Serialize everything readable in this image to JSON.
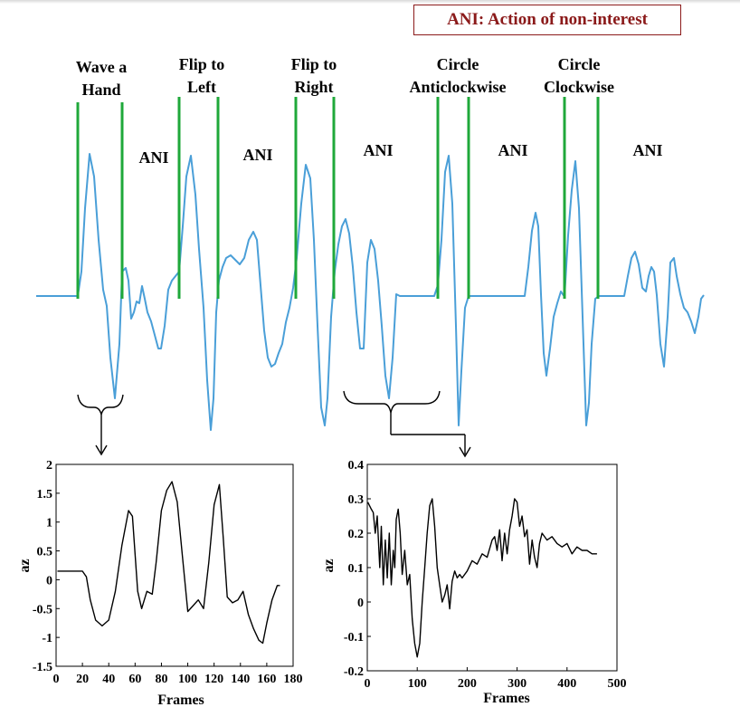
{
  "legend": "ANI: Action of non-interest",
  "gestures": [
    {
      "line1": "Wave a",
      "line2": "Hand"
    },
    {
      "line1": "Flip to",
      "line2": "Left"
    },
    {
      "line1": "Flip to",
      "line2": "Right"
    },
    {
      "line1": "Circle",
      "line2": "Anticlockwise"
    },
    {
      "line1": "Circle",
      "line2": "Clockwise"
    }
  ],
  "ani_labels": [
    "ANI",
    "ANI",
    "ANI",
    "ANI",
    "ANI"
  ],
  "colors": {
    "signal": "#4a9fd8",
    "marker": "#1fa83a",
    "legend": "#8b1a1a",
    "subplot": "#000000"
  },
  "chart_data": [
    {
      "type": "line",
      "title": "",
      "xlabel": "Frames",
      "ylabel": "az",
      "xlim": [
        0,
        180
      ],
      "ylim": [
        -1.5,
        2
      ],
      "xticks": [
        "0",
        "20",
        "40",
        "60",
        "80",
        "100",
        "120",
        "140",
        "160",
        "180"
      ],
      "yticks": [
        "-1.5",
        "-1",
        "-0.5",
        "0",
        "0.5",
        "1",
        "1.5",
        "2"
      ],
      "x": [
        1,
        5,
        10,
        15,
        20,
        23,
        26,
        30,
        35,
        40,
        45,
        50,
        55,
        58,
        62,
        65,
        69,
        73,
        76,
        80,
        84,
        88,
        92,
        96,
        100,
        104,
        108,
        112,
        116,
        120,
        124,
        127,
        130,
        134,
        138,
        142,
        146,
        150,
        154,
        157,
        160,
        164,
        168,
        170
      ],
      "y": [
        0.15,
        0.15,
        0.15,
        0.15,
        0.15,
        0.05,
        -0.35,
        -0.7,
        -0.8,
        -0.7,
        -0.2,
        0.6,
        1.2,
        1.1,
        -0.2,
        -0.5,
        -0.2,
        -0.25,
        0.3,
        1.2,
        1.55,
        1.7,
        1.35,
        0.4,
        -0.55,
        -0.45,
        -0.35,
        -0.5,
        0.3,
        1.3,
        1.65,
        0.7,
        -0.3,
        -0.4,
        -0.35,
        -0.2,
        -0.6,
        -0.85,
        -1.05,
        -1.1,
        -0.75,
        -0.35,
        -0.1,
        -0.1
      ]
    },
    {
      "type": "line",
      "title": "",
      "xlabel": "Frames",
      "ylabel": "az",
      "xlim": [
        0,
        500
      ],
      "ylim": [
        -0.2,
        0.4
      ],
      "xticks": [
        "0",
        "100",
        "200",
        "300",
        "400",
        "500"
      ],
      "yticks": [
        "-0.2",
        "-0.1",
        "0",
        "0.1",
        "0.2",
        "0.3",
        "0.4"
      ],
      "x": [
        1,
        8,
        12,
        16,
        20,
        25,
        28,
        32,
        36,
        40,
        44,
        48,
        52,
        55,
        58,
        62,
        66,
        70,
        75,
        80,
        85,
        90,
        95,
        100,
        105,
        110,
        115,
        120,
        125,
        130,
        135,
        140,
        145,
        150,
        155,
        160,
        165,
        170,
        175,
        180,
        185,
        190,
        200,
        210,
        220,
        230,
        240,
        250,
        255,
        260,
        265,
        270,
        275,
        280,
        285,
        290,
        295,
        300,
        305,
        310,
        315,
        320,
        325,
        330,
        335,
        340,
        345,
        350,
        360,
        370,
        380,
        390,
        400,
        410,
        420,
        430,
        440,
        450,
        460
      ],
      "y": [
        0.29,
        0.27,
        0.26,
        0.2,
        0.25,
        0.1,
        0.22,
        0.05,
        0.18,
        0.07,
        0.2,
        0.05,
        0.15,
        0.1,
        0.24,
        0.27,
        0.2,
        0.08,
        0.15,
        0.05,
        0.08,
        -0.05,
        -0.12,
        -0.16,
        -0.12,
        0.0,
        0.1,
        0.2,
        0.28,
        0.3,
        0.22,
        0.1,
        0.05,
        0.0,
        0.02,
        0.05,
        -0.02,
        0.06,
        0.09,
        0.07,
        0.08,
        0.07,
        0.09,
        0.12,
        0.11,
        0.14,
        0.13,
        0.18,
        0.19,
        0.15,
        0.21,
        0.12,
        0.2,
        0.14,
        0.21,
        0.25,
        0.3,
        0.29,
        0.22,
        0.25,
        0.19,
        0.21,
        0.11,
        0.18,
        0.13,
        0.1,
        0.17,
        0.2,
        0.18,
        0.19,
        0.17,
        0.16,
        0.17,
        0.14,
        0.16,
        0.15,
        0.15,
        0.14,
        0.14
      ]
    }
  ]
}
